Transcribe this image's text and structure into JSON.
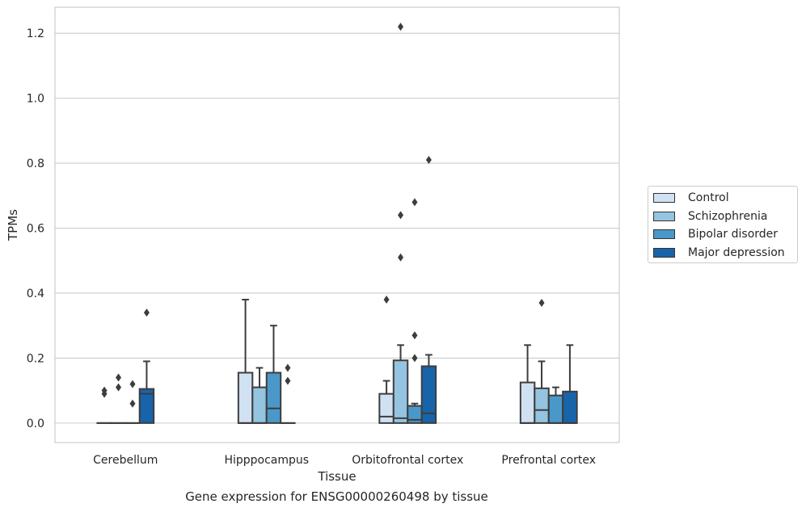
{
  "chart_data": {
    "type": "boxplot",
    "xlabel": "Tissue",
    "ylabel": "TPMs",
    "caption": "Gene expression for ENSG00000260498 by tissue",
    "ylim": [
      -0.06,
      1.28
    ],
    "yticks": [
      "0.0",
      "0.2",
      "0.4",
      "0.6",
      "0.8",
      "1.0",
      "1.2"
    ],
    "ytick_values": [
      0.0,
      0.2,
      0.4,
      0.6,
      0.8,
      1.0,
      1.2
    ],
    "grid": "horizontal",
    "legend_position": "right-outside",
    "categories": [
      "Cerebellum",
      "Hipppocampus",
      "Orbitofrontal cortex",
      "Prefrontal cortex"
    ],
    "series": [
      {
        "name": "Control",
        "color": "#d0e1f2",
        "boxes": [
          {
            "q1": 0.0,
            "median": 0.0,
            "q3": 0.0,
            "whisker_low": 0.0,
            "whisker_high": 0.0,
            "outliers": [
              0.09,
              0.1
            ]
          },
          {
            "q1": 0.0,
            "median": 0.0,
            "q3": 0.155,
            "whisker_low": 0.0,
            "whisker_high": 0.38,
            "outliers": []
          },
          {
            "q1": 0.0,
            "median": 0.02,
            "q3": 0.09,
            "whisker_low": 0.0,
            "whisker_high": 0.13,
            "outliers": [
              0.38
            ]
          },
          {
            "q1": 0.0,
            "median": 0.0,
            "q3": 0.125,
            "whisker_low": 0.0,
            "whisker_high": 0.24,
            "outliers": []
          }
        ]
      },
      {
        "name": "Schizophrenia",
        "color": "#94c4df",
        "boxes": [
          {
            "q1": 0.0,
            "median": 0.0,
            "q3": 0.0,
            "whisker_low": 0.0,
            "whisker_high": 0.0,
            "outliers": [
              0.11,
              0.14
            ]
          },
          {
            "q1": 0.0,
            "median": 0.0,
            "q3": 0.11,
            "whisker_low": 0.0,
            "whisker_high": 0.17,
            "outliers": []
          },
          {
            "q1": 0.0,
            "median": 0.015,
            "q3": 0.193,
            "whisker_low": 0.0,
            "whisker_high": 0.24,
            "outliers": [
              0.51,
              0.64,
              1.22
            ]
          },
          {
            "q1": 0.0,
            "median": 0.04,
            "q3": 0.107,
            "whisker_low": 0.0,
            "whisker_high": 0.19,
            "outliers": [
              0.37
            ]
          }
        ]
      },
      {
        "name": "Bipolar disorder",
        "color": "#4a98c9",
        "boxes": [
          {
            "q1": 0.0,
            "median": 0.0,
            "q3": 0.0,
            "whisker_low": 0.0,
            "whisker_high": 0.0,
            "outliers": [
              0.06,
              0.12
            ]
          },
          {
            "q1": 0.0,
            "median": 0.045,
            "q3": 0.155,
            "whisker_low": 0.0,
            "whisker_high": 0.3,
            "outliers": []
          },
          {
            "q1": 0.0,
            "median": 0.01,
            "q3": 0.053,
            "whisker_low": 0.0,
            "whisker_high": 0.06,
            "outliers": [
              0.2,
              0.27,
              0.68
            ]
          },
          {
            "q1": 0.0,
            "median": 0.0,
            "q3": 0.085,
            "whisker_low": 0.0,
            "whisker_high": 0.11,
            "outliers": []
          }
        ]
      },
      {
        "name": "Major depression",
        "color": "#1764ab",
        "boxes": [
          {
            "q1": 0.0,
            "median": 0.09,
            "q3": 0.105,
            "whisker_low": 0.0,
            "whisker_high": 0.19,
            "outliers": [
              0.34
            ]
          },
          {
            "q1": 0.0,
            "median": 0.0,
            "q3": 0.0,
            "whisker_low": 0.0,
            "whisker_high": 0.0,
            "outliers": [
              0.13,
              0.17
            ]
          },
          {
            "q1": 0.0,
            "median": 0.03,
            "q3": 0.175,
            "whisker_low": 0.0,
            "whisker_high": 0.21,
            "outliers": [
              0.81
            ]
          },
          {
            "q1": 0.0,
            "median": 0.0,
            "q3": 0.097,
            "whisker_low": 0.0,
            "whisker_high": 0.24,
            "outliers": []
          }
        ]
      }
    ]
  }
}
